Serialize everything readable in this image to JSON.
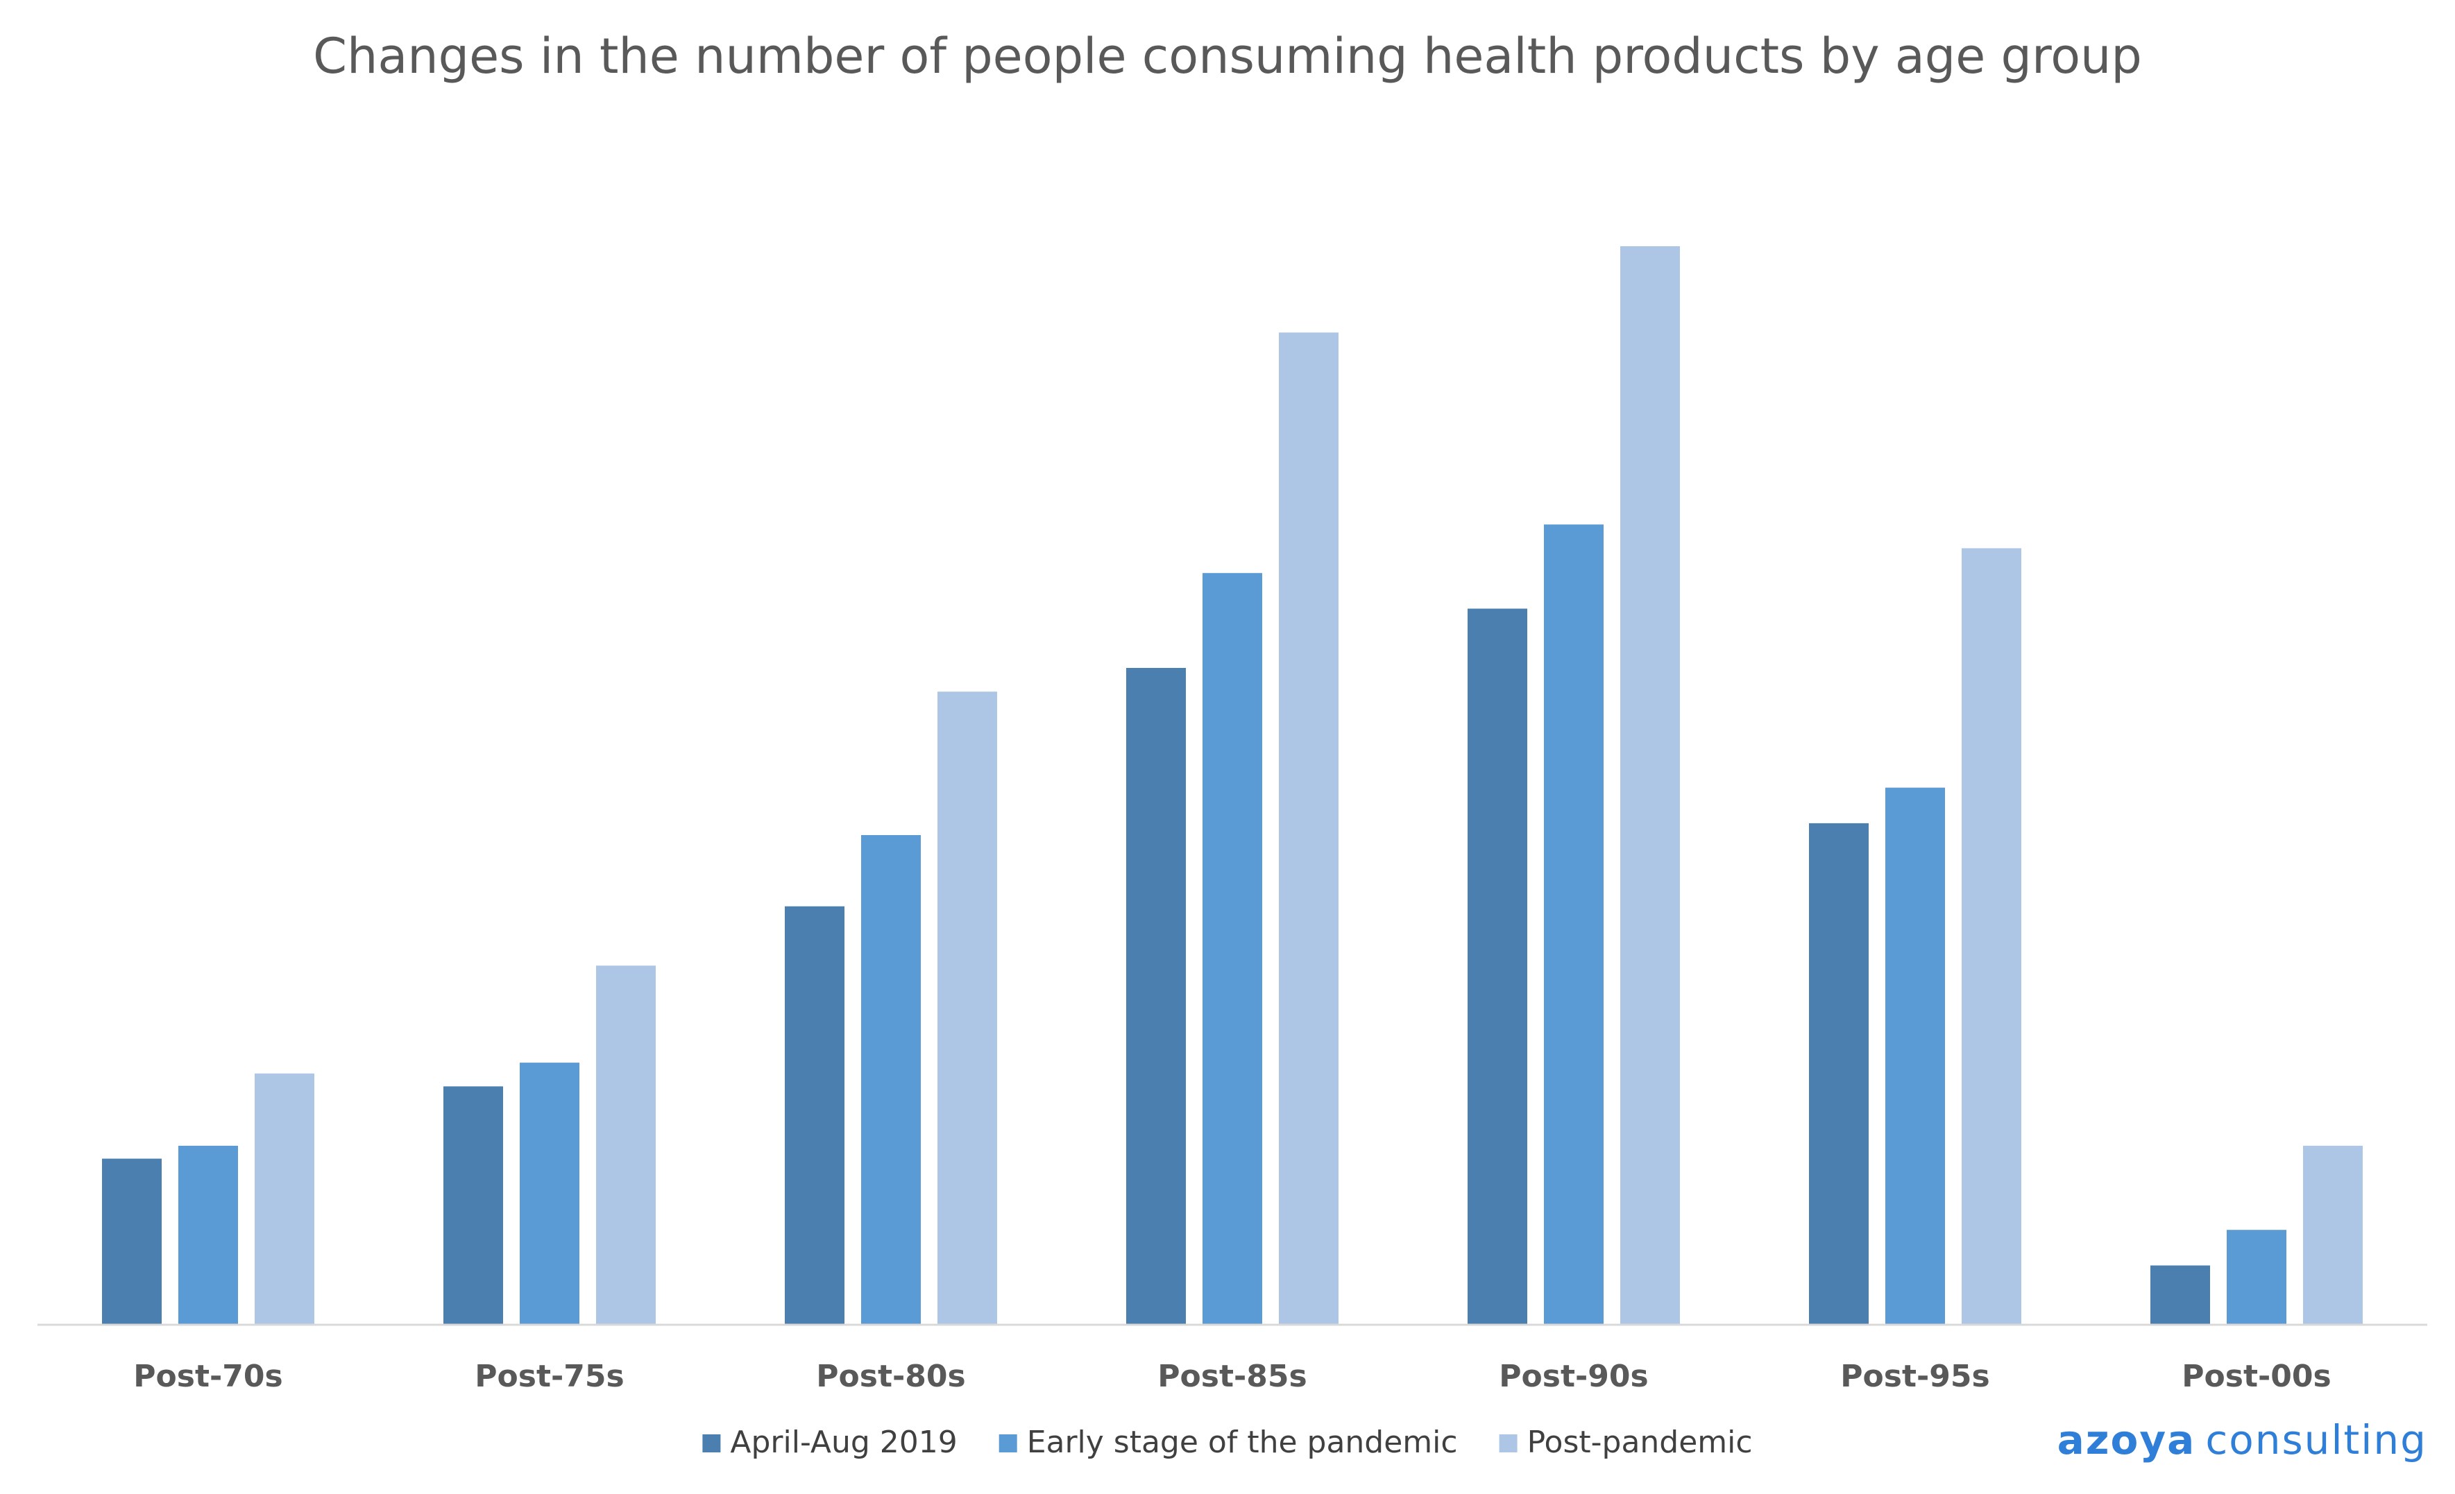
{
  "chart_data": {
    "type": "bar",
    "title": "Changes in the number of people consuming health products by age group",
    "xlabel": "",
    "ylabel": "",
    "ylim": [
      0,
      100
    ],
    "grid": false,
    "legend_position": "bottom",
    "categories": [
      "Post-70s",
      "Post-75s",
      "Post-80s",
      "Post-85s",
      "Post-90s",
      "Post-95s",
      "Post-00s"
    ],
    "series": [
      {
        "name": "April-Aug 2019",
        "color": "#4a7fb0",
        "values": [
          15.4,
          22.1,
          38.8,
          60.9,
          66.4,
          46.5,
          5.5
        ]
      },
      {
        "name": "Early stage of the pandemic",
        "color": "#5b9bd5",
        "values": [
          16.6,
          24.3,
          45.4,
          69.7,
          74.2,
          49.8,
          8.8
        ]
      },
      {
        "name": "Post-pandemic",
        "color": "#adc6e5",
        "values": [
          23.3,
          33.3,
          58.7,
          92.0,
          100.0,
          72.0,
          16.6
        ]
      }
    ]
  },
  "brand": {
    "bold": "azoya",
    "light": "consulting"
  }
}
